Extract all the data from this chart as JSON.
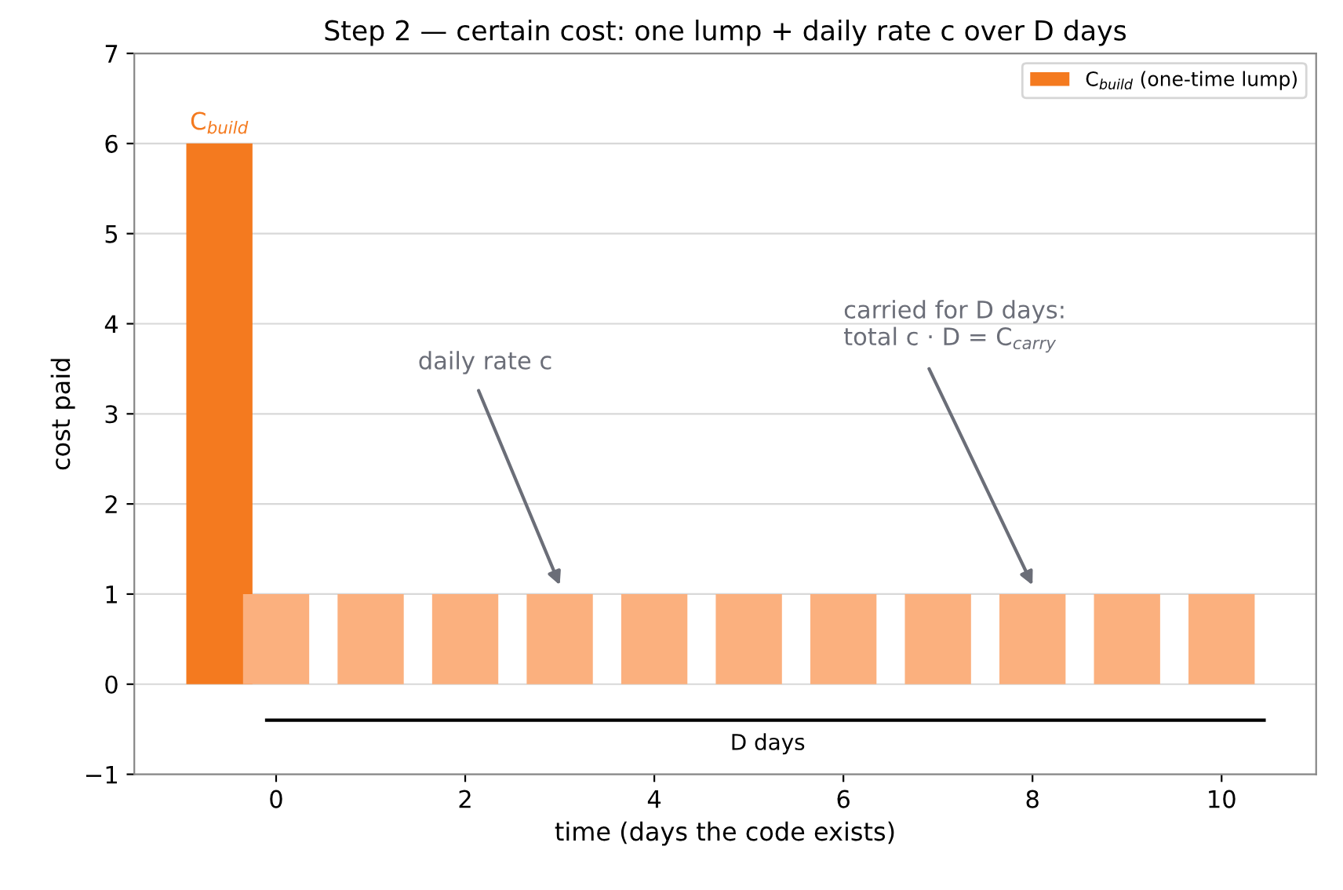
{
  "chart_data": {
    "type": "bar",
    "title": "Step 2 — certain cost: one lump + daily rate c over D days",
    "xlabel": "time (days the code exists)",
    "ylabel": "cost paid",
    "series": [
      {
        "name": "C$_{build}$ (one-time lump)",
        "color": "#f47a1f",
        "x": [
          -0.6
        ],
        "values": [
          6
        ]
      },
      {
        "color": "#fbb07e",
        "x": [
          0,
          1,
          2,
          3,
          4,
          5,
          6,
          7,
          8,
          9,
          10
        ],
        "values": [
          1,
          1,
          1,
          1,
          1,
          1,
          1,
          1,
          1,
          1,
          1
        ]
      },
      {
        "type": "line",
        "color": "#000000",
        "x": [
          -0.1,
          10.45
        ],
        "values": [
          -0.4,
          -0.4
        ]
      }
    ],
    "annotations": [
      {
        "text": "C$_{build}$",
        "x": -0.6,
        "y": 6
      },
      "daily rate c",
      "carried for D days:\ntotal c · D = C$_{carry}$",
      {
        "text": "D days",
        "x": 5.2,
        "y": -0.4
      }
    ],
    "xlim": [
      -1.5,
      11
    ],
    "xticks": [
      0,
      2,
      4,
      6,
      8,
      10
    ],
    "ylim": [
      -1,
      7
    ],
    "yticks": [
      {
        "value": -1,
        "label": "−1"
      },
      0,
      1,
      2,
      3,
      4,
      5,
      6,
      7
    ],
    "grid": "y",
    "legend": "top right"
  }
}
